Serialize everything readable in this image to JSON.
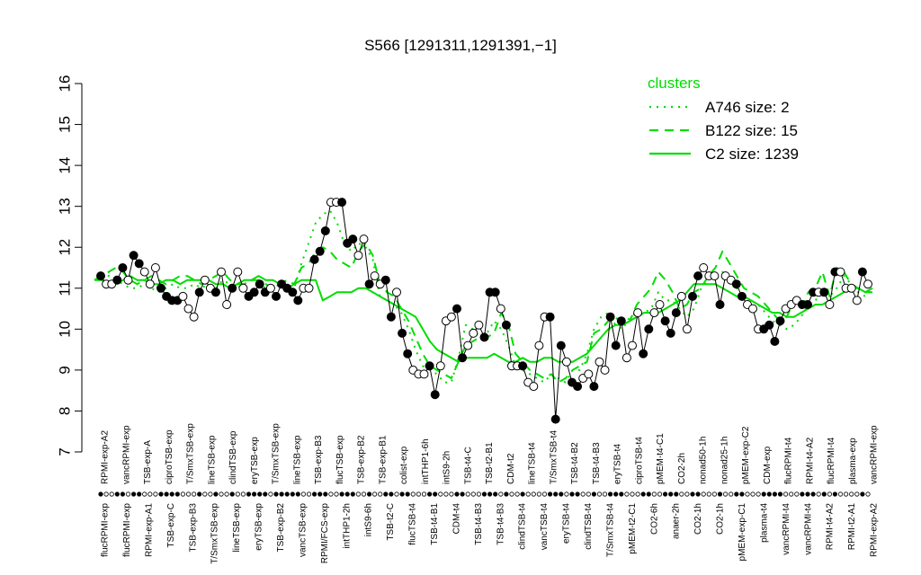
{
  "chart_data": {
    "type": "line",
    "title": "S566 [1291311,1291391,−1]",
    "xlabel": "",
    "ylabel": "",
    "ylim": [
      7,
      16
    ],
    "yticks": [
      7,
      8,
      9,
      10,
      11,
      12,
      13,
      14,
      15,
      16
    ],
    "grid": false,
    "legend": {
      "title": "clusters",
      "placement": "top-right",
      "color": "#00dd00",
      "entries": [
        {
          "label": "A746 size: 2",
          "style": "dotted"
        },
        {
          "label": "B122 size: 15",
          "style": "dashed"
        },
        {
          "label": "C2 size: 1239",
          "style": "solid"
        }
      ]
    },
    "x_tick_labels_top": [
      "RPMI-exp-A2",
      "vancRPMI-exp",
      "TSB-exp-A",
      "ciproTSB-exp",
      "T/SmxTSB-exp",
      "lineTSB-exp",
      "clindTSB-exp",
      "eryTSB-exp",
      "T/SmxTSB-exp",
      "lineTSB-exp",
      "TSB-exp-B3",
      "flucTSB-exp",
      "TSB-exp-B2",
      "TSB-exp-B1",
      "colist-exp",
      "intTHP1-6h",
      "intS9-2h",
      "TSB-t4-C",
      "TSB-t2-B1",
      "CDM-t2",
      "lineTSB-t4",
      "T/SmxTSB-t4",
      "TSB-t4-B2",
      "TSB-t4-B3",
      "eryTSB-t4",
      "ciproTSB-t4",
      "pMEM-t4-C1",
      "CO2-2h",
      "nonad50-1h",
      "nonad25-1h",
      "pMEM-exp-C2",
      "CDM-exp",
      "flucRPMI-t4",
      "RPMI-t4-A2",
      "flucRPMI-t4",
      "plasma-exp",
      "vancRPMI-exp"
    ],
    "x_tick_labels_bottom": [
      "flucRPMI-exp",
      "flucRPMI-exp",
      "RPMI-exp-A1",
      "TSB-exp-C",
      "TSB-exp-B3",
      "T/SmxTSB-exp",
      "lineTSB-exp",
      "eryTSB-exp",
      "TSB-exp-B2",
      "vancTSB-exp",
      "RPMI/FCS-exp",
      "intTHP1-2h",
      "intS9-6h",
      "TSB-t2-C",
      "flucTSB-t4",
      "TSB-t4-B1",
      "CDM-t4",
      "TSB-t4-B3",
      "TSB-t4-B3",
      "clindTSB-t4",
      "vancTSB-t4",
      "eryTSB-t4",
      "clindTSB-t4",
      "T/SmxTSB-t4",
      "pMEM-t2-C1",
      "CO2-6h",
      "anaer-2h",
      "CO2-1h",
      "CO2-1h",
      "pMEM-exp-C1",
      "plasma-t4",
      "vancRPMI-t4",
      "vancRPMI-t4",
      "RPMI-t4-A2",
      "RPMI-t2-A1",
      "RPMI-exp-A2"
    ],
    "series": [
      {
        "name": "C2 size: 1239",
        "style": "solid",
        "color": "#00dd00",
        "values": [
          11.2,
          11.2,
          11.1,
          11.1,
          11.2,
          11.3,
          11.2,
          11.2,
          11.1,
          11.1,
          11.2,
          11.2,
          11.1,
          11.2,
          11.2,
          11.2,
          11.2,
          11.1,
          11.1,
          11.0,
          11.1,
          11.2,
          11.2,
          11.3,
          11.2,
          11.2,
          11.1,
          11.0,
          11.1,
          11.2,
          11.2,
          11.2,
          10.7,
          10.8,
          10.9,
          10.9,
          10.9,
          11.0,
          11.0,
          10.9,
          10.8,
          10.7,
          10.6,
          10.5,
          10.4,
          10.3,
          10.0,
          9.7,
          9.5,
          9.4,
          9.3,
          9.2,
          9.3,
          9.3,
          9.3,
          9.3,
          9.4,
          9.3,
          9.2,
          9.2,
          9.3,
          9.2,
          9.2,
          9.3,
          9.3,
          9.2,
          9.2,
          9.2,
          9.3,
          9.4,
          9.6,
          9.8,
          10.0,
          10.1,
          10.1,
          10.2,
          10.3,
          10.4,
          10.4,
          10.4,
          10.5,
          10.6,
          10.7,
          10.9,
          11.1,
          11.1,
          11.1,
          11.1,
          11.0,
          10.9,
          10.8,
          10.8,
          10.7,
          10.6,
          10.5,
          10.4,
          10.4,
          10.3,
          10.3,
          10.4,
          10.5,
          10.6,
          10.6,
          10.7,
          10.8,
          10.9,
          11.0,
          11.0,
          10.9,
          10.9
        ]
      },
      {
        "name": "B122 size: 15",
        "style": "dashed",
        "color": "#00dd00",
        "values": [
          11.2,
          11.3,
          11.4,
          11.5,
          11.4,
          11.2,
          11.1,
          11.2,
          11.3,
          11.2,
          11.1,
          11.2,
          11.3,
          11.3,
          11.2,
          11.1,
          11.2,
          11.3,
          11.4,
          11.2,
          11.1,
          11.1,
          11.2,
          11.2,
          11.1,
          11.0,
          11.1,
          11.2,
          11.1,
          11.5,
          11.6,
          11.9,
          12.0,
          11.9,
          11.7,
          11.6,
          11.5,
          11.9,
          12.1,
          11.8,
          11.1,
          10.9,
          10.8,
          10.5,
          10.2,
          9.8,
          9.4,
          9.1,
          9.0,
          8.9,
          8.8,
          9.2,
          9.6,
          9.7,
          9.8,
          9.8,
          9.9,
          10.4,
          10.1,
          9.4,
          9.2,
          9.0,
          8.9,
          8.8,
          8.9,
          8.7,
          8.8,
          9.0,
          9.1,
          9.2,
          9.9,
          10.0,
          10.2,
          10.3,
          10.1,
          10.2,
          10.6,
          10.8,
          11.0,
          11.4,
          11.2,
          10.9,
          10.5,
          10.6,
          10.9,
          11.0,
          11.3,
          11.5,
          11.9,
          11.6,
          11.3,
          11.0,
          10.9,
          10.8,
          10.6,
          10.4,
          10.2,
          10.3,
          10.7,
          10.5,
          10.9,
          11.0,
          11.4,
          10.8,
          11.5,
          11.4,
          11.1,
          11.0,
          10.9,
          11.0
        ]
      },
      {
        "name": "A746 size: 2",
        "style": "dotted",
        "color": "#00dd00",
        "values": [
          11.2,
          11.3,
          11.3,
          11.2,
          11.1,
          11.0,
          11.0,
          11.1,
          11.0,
          10.9,
          11.0,
          11.1,
          11.0,
          11.0,
          11.1,
          11.0,
          11.1,
          11.0,
          11.2,
          11.1,
          11.0,
          11.1,
          11.2,
          11.1,
          11.0,
          11.0,
          11.1,
          11.0,
          11.0,
          11.6,
          12.1,
          12.6,
          12.8,
          12.9,
          12.6,
          12.1,
          11.9,
          12.1,
          12.0,
          11.7,
          10.8,
          10.7,
          10.6,
          10.4,
          10.0,
          9.5,
          9.1,
          9.0,
          8.9,
          8.7,
          8.7,
          9.3,
          10.1,
          10.0,
          9.8,
          9.9,
          10.2,
          10.0,
          9.6,
          9.1,
          9.0,
          8.9,
          8.8,
          8.7,
          8.9,
          8.8,
          8.7,
          9.0,
          9.0,
          9.4,
          10.0,
          10.3,
          10.4,
          10.1,
          10.0,
          10.3,
          10.4,
          10.4,
          10.5,
          10.9,
          10.7,
          10.7,
          10.5,
          10.3,
          10.5,
          11.0,
          11.2,
          11.3,
          11.4,
          11.2,
          11.0,
          10.8,
          10.7,
          10.6,
          10.4,
          10.2,
          10.1,
          10.0,
          10.1,
          10.3,
          10.6,
          10.7,
          10.9,
          10.8,
          11.0,
          11.3,
          11.1,
          10.9,
          10.8,
          11.0
        ]
      }
    ],
    "points": [
      {
        "y": 11.3,
        "filled": true
      },
      {
        "y": 11.1,
        "filled": false
      },
      {
        "y": 11.1,
        "filled": false
      },
      {
        "y": 11.2,
        "filled": true
      },
      {
        "y": 11.5,
        "filled": true
      },
      {
        "y": 11.2,
        "filled": false
      },
      {
        "y": 11.8,
        "filled": true
      },
      {
        "y": 11.6,
        "filled": true
      },
      {
        "y": 11.4,
        "filled": false
      },
      {
        "y": 11.1,
        "filled": false
      },
      {
        "y": 11.5,
        "filled": false
      },
      {
        "y": 11.0,
        "filled": true
      },
      {
        "y": 10.8,
        "filled": true
      },
      {
        "y": 10.7,
        "filled": true
      },
      {
        "y": 10.7,
        "filled": true
      },
      {
        "y": 10.8,
        "filled": false
      },
      {
        "y": 10.5,
        "filled": false
      },
      {
        "y": 10.3,
        "filled": false
      },
      {
        "y": 10.9,
        "filled": true
      },
      {
        "y": 11.2,
        "filled": false
      },
      {
        "y": 11.0,
        "filled": false
      },
      {
        "y": 10.9,
        "filled": true
      },
      {
        "y": 11.4,
        "filled": false
      },
      {
        "y": 10.6,
        "filled": false
      },
      {
        "y": 11.0,
        "filled": true
      },
      {
        "y": 11.4,
        "filled": false
      },
      {
        "y": 11.0,
        "filled": false
      },
      {
        "y": 10.8,
        "filled": true
      },
      {
        "y": 10.9,
        "filled": true
      },
      {
        "y": 11.1,
        "filled": true
      },
      {
        "y": 10.9,
        "filled": true
      },
      {
        "y": 11.0,
        "filled": false
      },
      {
        "y": 10.8,
        "filled": true
      },
      {
        "y": 11.1,
        "filled": true
      },
      {
        "y": 11.0,
        "filled": true
      },
      {
        "y": 10.9,
        "filled": true
      },
      {
        "y": 10.7,
        "filled": true
      },
      {
        "y": 11.0,
        "filled": false
      },
      {
        "y": 11.0,
        "filled": false
      },
      {
        "y": 11.7,
        "filled": true
      },
      {
        "y": 11.9,
        "filled": true
      },
      {
        "y": 12.4,
        "filled": true
      },
      {
        "y": 13.1,
        "filled": false
      },
      {
        "y": 13.1,
        "filled": false
      },
      {
        "y": 13.1,
        "filled": true
      },
      {
        "y": 12.1,
        "filled": true
      },
      {
        "y": 12.2,
        "filled": true
      },
      {
        "y": 11.8,
        "filled": false
      },
      {
        "y": 12.2,
        "filled": false
      },
      {
        "y": 11.1,
        "filled": true
      },
      {
        "y": 11.3,
        "filled": false
      },
      {
        "y": 11.1,
        "filled": false
      },
      {
        "y": 11.2,
        "filled": true
      },
      {
        "y": 10.3,
        "filled": true
      },
      {
        "y": 10.9,
        "filled": false
      },
      {
        "y": 9.9,
        "filled": true
      },
      {
        "y": 9.4,
        "filled": true
      },
      {
        "y": 9.0,
        "filled": false
      },
      {
        "y": 8.9,
        "filled": false
      },
      {
        "y": 8.9,
        "filled": false
      },
      {
        "y": 9.1,
        "filled": true
      },
      {
        "y": 8.4,
        "filled": true
      },
      {
        "y": 9.1,
        "filled": false
      },
      {
        "y": 10.2,
        "filled": false
      },
      {
        "y": 10.3,
        "filled": false
      },
      {
        "y": 10.5,
        "filled": true
      },
      {
        "y": 9.3,
        "filled": true
      },
      {
        "y": 9.6,
        "filled": false
      },
      {
        "y": 9.9,
        "filled": false
      },
      {
        "y": 10.1,
        "filled": false
      },
      {
        "y": 9.8,
        "filled": true
      },
      {
        "y": 10.9,
        "filled": true
      },
      {
        "y": 10.9,
        "filled": true
      },
      {
        "y": 10.5,
        "filled": false
      },
      {
        "y": 10.1,
        "filled": true
      },
      {
        "y": 9.1,
        "filled": false
      },
      {
        "y": 9.1,
        "filled": false
      },
      {
        "y": 9.1,
        "filled": true
      },
      {
        "y": 8.7,
        "filled": false
      },
      {
        "y": 8.6,
        "filled": false
      },
      {
        "y": 9.6,
        "filled": false
      },
      {
        "y": 10.3,
        "filled": false
      },
      {
        "y": 10.3,
        "filled": true
      },
      {
        "y": 7.8,
        "filled": true
      },
      {
        "y": 9.6,
        "filled": true
      },
      {
        "y": 9.2,
        "filled": false
      },
      {
        "y": 8.7,
        "filled": true
      },
      {
        "y": 8.6,
        "filled": true
      },
      {
        "y": 8.8,
        "filled": false
      },
      {
        "y": 8.9,
        "filled": false
      },
      {
        "y": 8.6,
        "filled": true
      },
      {
        "y": 9.2,
        "filled": false
      },
      {
        "y": 9.0,
        "filled": false
      },
      {
        "y": 10.3,
        "filled": true
      },
      {
        "y": 9.6,
        "filled": true
      },
      {
        "y": 10.2,
        "filled": true
      },
      {
        "y": 9.3,
        "filled": false
      },
      {
        "y": 9.6,
        "filled": false
      },
      {
        "y": 10.4,
        "filled": false
      },
      {
        "y": 9.4,
        "filled": true
      },
      {
        "y": 10.0,
        "filled": true
      },
      {
        "y": 10.4,
        "filled": false
      },
      {
        "y": 10.6,
        "filled": false
      },
      {
        "y": 10.2,
        "filled": true
      },
      {
        "y": 9.9,
        "filled": true
      },
      {
        "y": 10.4,
        "filled": true
      },
      {
        "y": 10.8,
        "filled": false
      },
      {
        "y": 10.0,
        "filled": false
      },
      {
        "y": 10.8,
        "filled": true
      },
      {
        "y": 11.3,
        "filled": true
      },
      {
        "y": 11.5,
        "filled": false
      },
      {
        "y": 11.3,
        "filled": false
      },
      {
        "y": 11.3,
        "filled": false
      },
      {
        "y": 10.6,
        "filled": true
      },
      {
        "y": 11.3,
        "filled": false
      },
      {
        "y": 11.2,
        "filled": false
      },
      {
        "y": 11.1,
        "filled": true
      },
      {
        "y": 10.8,
        "filled": true
      },
      {
        "y": 10.6,
        "filled": false
      },
      {
        "y": 10.5,
        "filled": false
      },
      {
        "y": 10.0,
        "filled": false
      },
      {
        "y": 10.0,
        "filled": true
      },
      {
        "y": 10.1,
        "filled": true
      },
      {
        "y": 9.7,
        "filled": true
      },
      {
        "y": 10.2,
        "filled": true
      },
      {
        "y": 10.5,
        "filled": false
      },
      {
        "y": 10.6,
        "filled": false
      },
      {
        "y": 10.7,
        "filled": false
      },
      {
        "y": 10.6,
        "filled": true
      },
      {
        "y": 10.6,
        "filled": true
      },
      {
        "y": 10.9,
        "filled": true
      },
      {
        "y": 10.9,
        "filled": false
      },
      {
        "y": 10.9,
        "filled": true
      },
      {
        "y": 10.6,
        "filled": false
      },
      {
        "y": 11.4,
        "filled": true
      },
      {
        "y": 11.4,
        "filled": false
      },
      {
        "y": 11.0,
        "filled": false
      },
      {
        "y": 11.0,
        "filled": false
      },
      {
        "y": 10.7,
        "filled": false
      },
      {
        "y": 11.4,
        "filled": true
      },
      {
        "y": 11.1,
        "filled": false
      }
    ]
  }
}
